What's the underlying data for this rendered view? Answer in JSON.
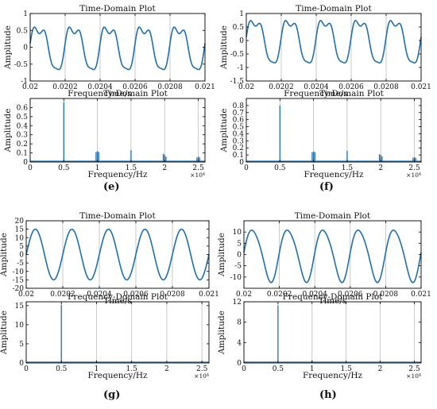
{
  "panel_labels": {
    "e": "(e)",
    "f": "(f)",
    "g": "(g)",
    "h": "(h)"
  },
  "colors": {
    "line": "#1f6fae",
    "grid": "#bdbdbd",
    "axis": "#000000"
  },
  "chart_data": [
    {
      "id": "e-time",
      "type": "line",
      "title": "Time-Domain Plot",
      "xlabel": "Time/s",
      "ylabel": "Amplitude",
      "xlim": [
        0.02,
        0.021
      ],
      "ylim": [
        -1,
        1
      ],
      "xticks": [
        0.02,
        0.0202,
        0.0204,
        0.0206,
        0.0208,
        0.021
      ],
      "xtick_labels": [
        "0.02",
        "0.0202",
        "0.0204",
        "0.0206",
        "0.0208",
        "0.021"
      ],
      "yticks": [
        -1,
        -0.5,
        0,
        0.5,
        1
      ],
      "ytick_labels": [
        "-1",
        "-0.5",
        "0",
        "0.5",
        "1"
      ],
      "signal": {
        "period": 0.0002,
        "phase": 0.0,
        "components": [
          [
            1,
            0.65,
            0
          ],
          [
            2,
            0.12,
            1.2
          ],
          [
            3,
            0.13,
            0
          ]
        ]
      }
    },
    {
      "id": "e-freq",
      "type": "spectrum",
      "title": "Frequency-Domain Plot",
      "xlabel": "Frequency/Hz",
      "ylabel": "Amplitude",
      "x_exponent_label": "×10⁴",
      "xlim": [
        0,
        26000
      ],
      "ylim": [
        0,
        0.7
      ],
      "xticks": [
        0,
        5000,
        10000,
        15000,
        20000,
        25000
      ],
      "xtick_labels": [
        "0",
        "0.5",
        "1",
        "1.5",
        "2",
        "2.5"
      ],
      "yticks": [
        0,
        0.1,
        0.2,
        0.3,
        0.4,
        0.5,
        0.6
      ],
      "ytick_labels": [
        "0",
        "0.1",
        "0.2",
        "0.3",
        "0.4",
        "0.5",
        "0.6"
      ],
      "peaks": [
        {
          "x": 5000,
          "y": 0.66
        },
        {
          "x": 9800,
          "y": 0.11
        },
        {
          "x": 10000,
          "y": 0.12
        },
        {
          "x": 10200,
          "y": 0.11
        },
        {
          "x": 15000,
          "y": 0.13
        },
        {
          "x": 19800,
          "y": 0.09
        },
        {
          "x": 20000,
          "y": 0.08
        },
        {
          "x": 20200,
          "y": 0.06
        },
        {
          "x": 24800,
          "y": 0.05
        },
        {
          "x": 25000,
          "y": 0.06
        },
        {
          "x": 25200,
          "y": 0.05
        }
      ]
    },
    {
      "id": "f-time",
      "type": "line",
      "title": "Time-Domain Plot",
      "xlabel": "Time/s",
      "ylabel": "Amplitude",
      "xlim": [
        0.02,
        0.021
      ],
      "ylim": [
        -1.5,
        1
      ],
      "xticks": [
        0.02,
        0.0202,
        0.0204,
        0.0206,
        0.0208,
        0.021
      ],
      "xtick_labels": [
        "0.02",
        "0.0202",
        "0.0204",
        "0.0206",
        "0.0208",
        "0.021"
      ],
      "yticks": [
        -1.5,
        -1,
        -0.5,
        0,
        0.5,
        1
      ],
      "ytick_labels": [
        "-1.5",
        "-1",
        "-0.5",
        "0",
        "0.5",
        "1"
      ],
      "signal": {
        "period": 0.0002,
        "phase": 0.0,
        "components": [
          [
            1,
            0.82,
            0
          ],
          [
            2,
            0.14,
            1.2
          ],
          [
            3,
            0.15,
            0
          ]
        ]
      }
    },
    {
      "id": "f-freq",
      "type": "spectrum",
      "title": "Frequency-Domain Plot",
      "xlabel": "Frequency/Hz",
      "ylabel": "Amplitude",
      "x_exponent_label": "×10⁴",
      "xlim": [
        0,
        26000
      ],
      "ylim": [
        0,
        0.9
      ],
      "xticks": [
        0,
        5000,
        10000,
        15000,
        20000,
        25000
      ],
      "xtick_labels": [
        "0",
        "0.5",
        "1",
        "1.5",
        "2",
        "2.5"
      ],
      "yticks": [
        0,
        0.1,
        0.2,
        0.3,
        0.4,
        0.5,
        0.6,
        0.7,
        0.8
      ],
      "ytick_labels": [
        "0",
        "0.1",
        "0.2",
        "0.3",
        "0.4",
        "0.5",
        "0.6",
        "0.7",
        "0.8"
      ],
      "peaks": [
        {
          "x": 5000,
          "y": 0.8
        },
        {
          "x": 9800,
          "y": 0.14
        },
        {
          "x": 10000,
          "y": 0.15
        },
        {
          "x": 10200,
          "y": 0.14
        },
        {
          "x": 15000,
          "y": 0.16
        },
        {
          "x": 19800,
          "y": 0.11
        },
        {
          "x": 20000,
          "y": 0.1
        },
        {
          "x": 20200,
          "y": 0.08
        },
        {
          "x": 24800,
          "y": 0.06
        },
        {
          "x": 25000,
          "y": 0.07
        },
        {
          "x": 25200,
          "y": 0.06
        }
      ]
    },
    {
      "id": "g-time",
      "type": "line",
      "title": "Time-Domain Plot",
      "xlabel": "Time/s",
      "ylabel": "Amplitude",
      "xlim": [
        0.02,
        0.021
      ],
      "ylim": [
        -20,
        20
      ],
      "xticks": [
        0.02,
        0.0202,
        0.0204,
        0.0206,
        0.0208,
        0.021
      ],
      "xtick_labels": [
        "0.02",
        "0.0202",
        "0.0204",
        "0.0206",
        "0.0208",
        "0.021"
      ],
      "yticks": [
        -20,
        -15,
        -10,
        -5,
        0,
        5,
        10,
        15,
        20
      ],
      "ytick_labels": [
        "-20",
        "-15",
        "-10",
        "-5",
        "0",
        "5",
        "10",
        "15",
        "20"
      ],
      "signal": {
        "period": 0.0002,
        "phase": 0.0,
        "components": [
          [
            1,
            15,
            0
          ]
        ]
      }
    },
    {
      "id": "g-freq",
      "type": "spectrum",
      "title": "Frequency-Domain Plot",
      "xlabel": "Frequency/Hz",
      "ylabel": "Amplitude",
      "x_exponent_label": "×10⁴",
      "xlim": [
        0,
        26000
      ],
      "ylim": [
        0,
        16
      ],
      "xticks": [
        0,
        5000,
        10000,
        15000,
        20000,
        25000
      ],
      "xtick_labels": [
        "0",
        "0.5",
        "1",
        "1.5",
        "2",
        "2.5"
      ],
      "yticks": [
        0,
        5,
        10,
        15
      ],
      "ytick_labels": [
        "0",
        "5",
        "10",
        "15"
      ],
      "peaks": [
        {
          "x": 5000,
          "y": 15.2
        },
        {
          "x": 10000,
          "y": 0.6
        },
        {
          "x": 15000,
          "y": 0.2
        },
        {
          "x": 20000,
          "y": 0.2
        }
      ]
    },
    {
      "id": "h-time",
      "type": "line",
      "title": "Time-Domain Plot",
      "xlabel": "Time/s",
      "ylabel": "Amplitude",
      "xlim": [
        0.02,
        0.021
      ],
      "ylim": [
        -15,
        15
      ],
      "xticks": [
        0.02,
        0.0202,
        0.0204,
        0.0206,
        0.0208,
        0.021
      ],
      "xtick_labels": [
        "0.02",
        "0.0202",
        "0.0204",
        "0.0206",
        "0.0208",
        "0.021"
      ],
      "yticks": [
        -10,
        -5,
        0,
        5,
        10
      ],
      "ytick_labels": [
        "-10",
        "-5",
        "0",
        "5",
        "10"
      ],
      "signal": {
        "period": 0.0002,
        "phase": 0.0,
        "components": [
          [
            1,
            11.5,
            0
          ],
          [
            2,
            1.2,
            0.8
          ]
        ]
      }
    },
    {
      "id": "h-freq",
      "type": "spectrum",
      "title": "Frequency-Domain Plot",
      "xlabel": "Frequency/Hz",
      "ylabel": "Amplitude",
      "x_exponent_label": "×10⁴",
      "xlim": [
        0,
        26000
      ],
      "ylim": [
        0,
        12
      ],
      "xticks": [
        0,
        5000,
        10000,
        15000,
        20000,
        25000
      ],
      "xtick_labels": [
        "0",
        "0.5",
        "1",
        "1.5",
        "2",
        "2.5"
      ],
      "yticks": [
        0,
        4,
        8,
        12
      ],
      "ytick_labels": [
        "0",
        "4",
        "8",
        "12"
      ],
      "peaks": [
        {
          "x": 5000,
          "y": 11.3
        },
        {
          "x": 10000,
          "y": 0.5
        },
        {
          "x": 15000,
          "y": 0.15
        },
        {
          "x": 20000,
          "y": 0.15
        }
      ]
    }
  ]
}
